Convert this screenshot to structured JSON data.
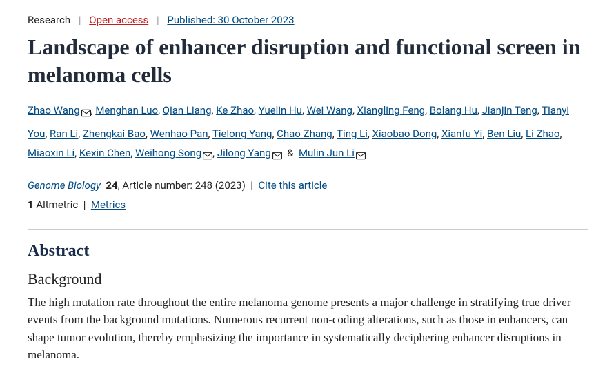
{
  "meta": {
    "category": "Research",
    "access": "Open access",
    "published_label": "Published: 30 October 2023"
  },
  "title": "Landscape of enhancer disruption and functional screen in melanoma cells",
  "authors": [
    {
      "name": "Zhao Wang",
      "mail": true
    },
    {
      "name": "Menghan Luo",
      "mail": false
    },
    {
      "name": "Qian Liang",
      "mail": false
    },
    {
      "name": "Ke Zhao",
      "mail": false
    },
    {
      "name": "Yuelin Hu",
      "mail": false
    },
    {
      "name": "Wei Wang",
      "mail": false
    },
    {
      "name": "Xiangling Feng",
      "mail": false
    },
    {
      "name": "Bolang Hu",
      "mail": false
    },
    {
      "name": "Jianjin Teng",
      "mail": false
    },
    {
      "name": "Tianyi You",
      "mail": false
    },
    {
      "name": "Ran Li",
      "mail": false
    },
    {
      "name": "Zhengkai Bao",
      "mail": false
    },
    {
      "name": "Wenhao Pan",
      "mail": false
    },
    {
      "name": "Tielong Yang",
      "mail": false
    },
    {
      "name": "Chao Zhang",
      "mail": false
    },
    {
      "name": "Ting Li",
      "mail": false
    },
    {
      "name": "Xiaobao Dong",
      "mail": false
    },
    {
      "name": "Xianfu Yi",
      "mail": false
    },
    {
      "name": "Ben Liu",
      "mail": false
    },
    {
      "name": "Li Zhao",
      "mail": false
    },
    {
      "name": "Miaoxin Li",
      "mail": false
    },
    {
      "name": "Kexin Chen",
      "mail": false
    },
    {
      "name": "Weihong Song",
      "mail": true
    },
    {
      "name": "Jilong Yang",
      "mail": true
    },
    {
      "name": "Mulin Jun Li",
      "mail": true,
      "last": true
    }
  ],
  "citation": {
    "journal": "Genome Biology",
    "volume": "24",
    "article_label": ", Article number: 248 (2023)",
    "cite_link": "Cite this article"
  },
  "metrics": {
    "altmetric_count": "1",
    "altmetric_label": " Altmetric",
    "metrics_link": "Metrics"
  },
  "abstract": {
    "heading": "Abstract",
    "sub_heading": "Background",
    "text": "The high mutation rate throughout the entire melanoma genome presents a major challenge in stratifying true driver events from the background mutations. Numerous recurrent non-coding alterations, such as those in enhancers, can shape tumor evolution, thereby emphasizing the importance in systematically deciphering enhancer disruptions in melanoma."
  }
}
